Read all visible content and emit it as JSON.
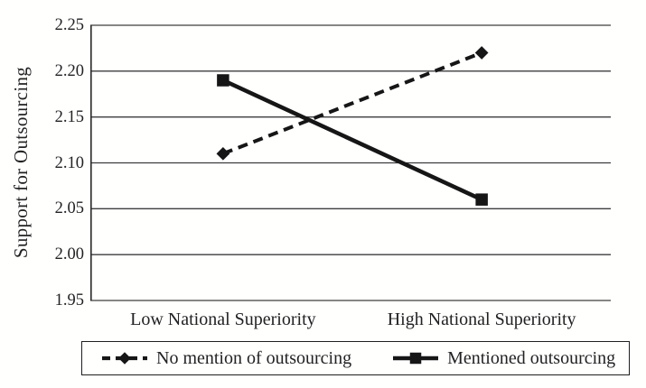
{
  "chart_data": {
    "type": "line",
    "title": "",
    "xlabel": "",
    "ylabel": "Support for Outsourcing",
    "categories": [
      "Low National Superiority",
      "High National Superiority"
    ],
    "series": [
      {
        "name": "No mention of outsourcing",
        "values": [
          2.11,
          2.22
        ],
        "line_style": "dashed",
        "marker": "diamond"
      },
      {
        "name": "Mentioned outsourcing",
        "values": [
          2.19,
          2.06
        ],
        "line_style": "solid",
        "marker": "square"
      }
    ],
    "ylim": [
      1.95,
      2.25
    ],
    "ytick_step": 0.05,
    "yticks": [
      "2.25",
      "2.20",
      "2.15",
      "2.10",
      "2.05",
      "2.00",
      "1.95"
    ],
    "grid": true,
    "legend_position": "bottom-boxed",
    "colors": {
      "series_line": "#161616",
      "marker": "#161616",
      "grid_line": "#3d3d3d",
      "axis_line": "#2a2a2a",
      "text": "#222222",
      "legend_border": "#1f1f1f",
      "background": "#fffffe"
    }
  }
}
